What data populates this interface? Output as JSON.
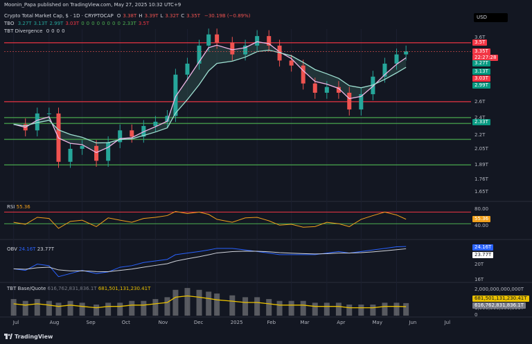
{
  "header": {
    "publisher": "Moonin_Papa published on TradingView.com, May 27, 2025 10:32 UTC+9",
    "symbol": "Crypto Total Market Cap, $ · 1D · CRYPTOCAP",
    "ohlc": [
      {
        "k": "O",
        "v": "3.38T"
      },
      {
        "k": "H",
        "v": "3.39T"
      },
      {
        "k": "L",
        "v": "3.32T"
      },
      {
        "k": "C",
        "v": "3.35T"
      },
      {
        "k": "",
        "v": "−30.19B (−0.89%)"
      }
    ],
    "tbo_label": "TBO",
    "tbo_values": [
      "3.27T",
      "3.13T",
      "2.99T",
      "3.03T",
      "0",
      "0",
      "0",
      "0",
      "0",
      "0",
      "0",
      "0",
      "2.33T",
      "3.5T"
    ],
    "divergence_label": "TBT Divergence",
    "divergence_values": [
      "0",
      "0",
      "0",
      "0"
    ],
    "currency": "USD"
  },
  "colors": {
    "background": "#131722",
    "up": "#26a69a",
    "down": "#ef5350",
    "rsi": "#f2a01b",
    "obv": "#2962ff",
    "obv_ma": "#d1d4dc",
    "volume": "#9e9e9e",
    "base_quote_line": "#e9c000",
    "support": "#4caf50",
    "resistance": "#f23645",
    "fast_ma": "#f0b6e6",
    "slow_ma": "#9fe0d2"
  },
  "price_axis": {
    "ticks": [
      "3.6T",
      "3.13T",
      "2.6T",
      "2.4T",
      "2.2T",
      "2.05T",
      "1.89T",
      "1.76T",
      "1.65T"
    ],
    "badges": [
      {
        "text": "3.5T",
        "color": "#f23645"
      },
      {
        "text": "3.35T",
        "color": "#f23645"
      },
      {
        "text": "22:27:28",
        "color": "#f23645"
      },
      {
        "text": "3.27T",
        "color": "#089981"
      },
      {
        "text": "3.13T",
        "color": "#089981"
      },
      {
        "text": "3.03T",
        "color": "#f23645"
      },
      {
        "text": "2.99T",
        "color": "#089981"
      },
      {
        "text": "2.33T",
        "color": "#089981"
      }
    ]
  },
  "panes": {
    "rsi": {
      "label": "RSI",
      "value": "55.36",
      "ticks": [
        "80.00",
        "40.00"
      ],
      "badge": "55.36"
    },
    "obv": {
      "label": "OBV",
      "value1": "24.16T",
      "value2": "23.77T",
      "ticks": [
        "20T",
        "16T"
      ],
      "badge1": "24.16T",
      "badge2": "23.77T"
    },
    "base_quote": {
      "label": "TBT Base/Quote",
      "value1": "616,762,831,836.1T",
      "value2": "681,501,131,230.41T",
      "ticks": [
        "2,000,000,000,000T",
        "1,000,000,000,000T",
        "0"
      ],
      "badge1": "681,501,131,230.41T",
      "badge2": "616,762,831,836.1T"
    }
  },
  "x_axis": {
    "labels": [
      "Jul",
      "Aug",
      "Sep",
      "Oct",
      "Nov",
      "Dec",
      "2025",
      "Feb",
      "Mar",
      "Apr",
      "May",
      "Jun",
      "Jul"
    ]
  },
  "footer": {
    "brand": "TradingView"
  },
  "chart_data": {
    "type": "line",
    "title": "Crypto Total Market Cap, $ · 1D · CRYPTOCAP",
    "y_scale": "log",
    "ylim": [
      1.6,
      3.75
    ],
    "x": [
      "2024-06-28",
      "2024-07-08",
      "2024-07-18",
      "2024-07-28",
      "2024-08-05",
      "2024-08-15",
      "2024-08-25",
      "2024-09-06",
      "2024-09-16",
      "2024-09-26",
      "2024-10-06",
      "2024-10-16",
      "2024-10-26",
      "2024-11-05",
      "2024-11-12",
      "2024-11-22",
      "2024-12-02",
      "2024-12-10",
      "2024-12-17",
      "2024-12-30",
      "2025-01-10",
      "2025-01-20",
      "2025-01-30",
      "2025-02-08",
      "2025-02-18",
      "2025-02-28",
      "2025-03-10",
      "2025-03-20",
      "2025-03-30",
      "2025-04-08",
      "2025-04-18",
      "2025-04-28",
      "2025-05-08",
      "2025-05-18",
      "2025-05-26"
    ],
    "series": [
      {
        "name": "Crypto Total Market Cap, $",
        "values": [
          2.32,
          2.25,
          2.45,
          2.45,
          1.92,
          2.05,
          2.08,
          1.93,
          2.12,
          2.25,
          2.18,
          2.3,
          2.35,
          2.42,
          2.98,
          3.15,
          3.45,
          3.65,
          3.5,
          3.3,
          3.45,
          3.62,
          3.45,
          3.2,
          3.12,
          2.85,
          2.72,
          2.8,
          2.72,
          2.5,
          2.7,
          2.95,
          3.15,
          3.3,
          3.35
        ]
      }
    ],
    "levels": [
      {
        "value": 3.5,
        "style": "resistance"
      },
      {
        "value": 2.6,
        "style": "resistance"
      },
      {
        "value": 2.4,
        "style": "support"
      },
      {
        "value": 2.33,
        "style": "support"
      },
      {
        "value": 2.15,
        "style": "support"
      },
      {
        "value": 1.89,
        "style": "support"
      }
    ],
    "rsi": {
      "ylim": [
        0,
        100
      ],
      "values": [
        45,
        38,
        62,
        58,
        24,
        48,
        52,
        30,
        60,
        52,
        45,
        58,
        62,
        68,
        82,
        75,
        80,
        72,
        55,
        45,
        60,
        62,
        50,
        35,
        38,
        28,
        30,
        45,
        40,
        30,
        55,
        68,
        80,
        70,
        55.36
      ]
    },
    "obv": {
      "values": [
        10,
        9,
        13,
        12,
        5,
        7,
        9,
        7,
        8,
        11,
        12,
        14,
        15,
        16,
        19,
        20,
        21,
        22,
        23,
        23,
        22,
        21,
        20,
        19,
        19,
        19,
        19,
        20,
        21,
        20,
        21,
        22,
        23,
        24,
        24.16
      ]
    },
    "base_quote": {
      "values": [
        0.9,
        0.8,
        0.9,
        0.8,
        0.7,
        0.8,
        0.7,
        0.6,
        0.7,
        0.7,
        0.8,
        0.8,
        0.9,
        1.0,
        1.4,
        1.5,
        1.4,
        1.3,
        1.2,
        1.1,
        1.0,
        1.0,
        0.9,
        0.8,
        0.8,
        0.8,
        0.7,
        0.7,
        0.7,
        0.6,
        0.6,
        0.6,
        0.7,
        0.7,
        0.68
      ]
    },
    "legend_placement": "top-left",
    "grid": true
  }
}
